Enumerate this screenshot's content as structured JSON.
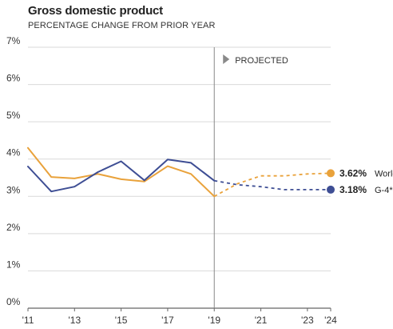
{
  "chart_data": {
    "type": "line",
    "title": "Gross domestic product",
    "subtitle": "PERCENTAGE CHANGE FROM PRIOR YEAR",
    "xlabel": "",
    "ylabel": "",
    "xlim": [
      2011,
      2024
    ],
    "ylim": [
      0,
      7
    ],
    "y_ticks": [
      "0%",
      "1%",
      "2%",
      "3%",
      "4%",
      "5%",
      "6%",
      "7%"
    ],
    "y_tick_values": [
      0,
      1,
      2,
      3,
      4,
      5,
      6,
      7
    ],
    "x_ticks": [
      "'11",
      "'13",
      "'15",
      "'17",
      "'19",
      "'21",
      "'23",
      "'24"
    ],
    "x_tick_values": [
      2011,
      2013,
      2015,
      2017,
      2019,
      2021,
      2023,
      2024
    ],
    "grid": "horizontal",
    "projection_start": 2019,
    "projection_label": "PROJECTED",
    "series": [
      {
        "name": "World",
        "color": "#E9A23B",
        "end_label": "3.62%",
        "x": [
          2011,
          2012,
          2013,
          2014,
          2015,
          2016,
          2017,
          2018,
          2019,
          2020,
          2021,
          2022,
          2023,
          2024
        ],
        "values": [
          4.3,
          3.52,
          3.48,
          3.6,
          3.46,
          3.4,
          3.81,
          3.6,
          3.0,
          3.34,
          3.55,
          3.55,
          3.6,
          3.62
        ]
      },
      {
        "name": "G-4*",
        "color": "#3E4E94",
        "end_label": "3.18%",
        "x": [
          2011,
          2012,
          2013,
          2014,
          2015,
          2016,
          2017,
          2018,
          2019,
          2020,
          2021,
          2022,
          2023,
          2024
        ],
        "values": [
          3.8,
          3.13,
          3.26,
          3.65,
          3.94,
          3.43,
          3.99,
          3.9,
          3.42,
          3.31,
          3.26,
          3.18,
          3.18,
          3.18
        ]
      }
    ]
  }
}
